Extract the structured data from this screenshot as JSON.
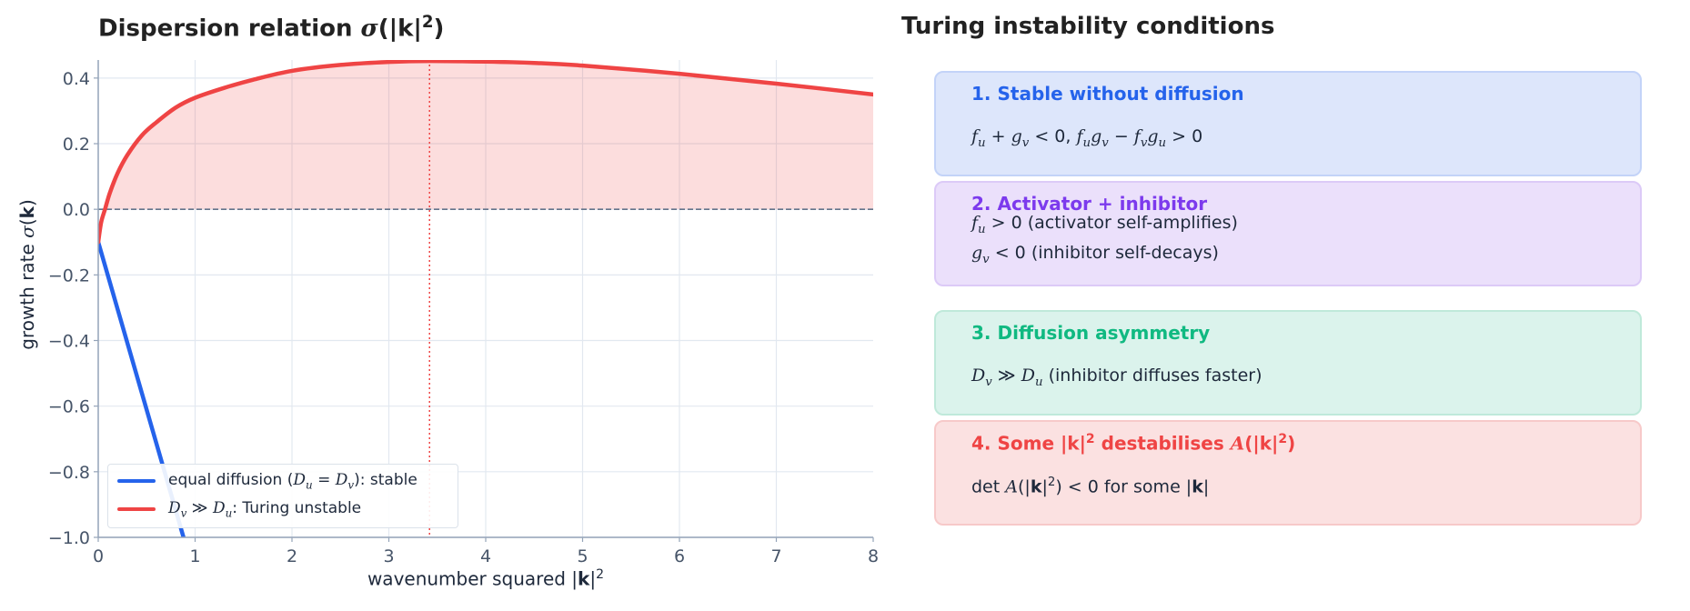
{
  "left_title": [
    {
      "t": "Dispersion relation "
    },
    {
      "t": "σ",
      "s": "m"
    },
    {
      "t": "(|"
    },
    {
      "t": "k",
      "s": "b"
    },
    {
      "t": "|"
    },
    {
      "t": "2",
      "s": "sup"
    },
    {
      "t": ")"
    }
  ],
  "right_title": "Turing instability conditions",
  "colors": {
    "blue": "#2563eb",
    "red": "#ef4444",
    "purple": "#7c3aed",
    "green": "#10b981",
    "grid": "#e2e8f0",
    "axis": "#94a3b8",
    "tick": "#475569"
  },
  "chart_data": {
    "type": "line",
    "xlabel": [
      {
        "t": "wavenumber squared  |"
      },
      {
        "t": "k",
        "s": "b"
      },
      {
        "t": "|"
      },
      {
        "t": "2",
        "s": "sup"
      }
    ],
    "ylabel": [
      {
        "t": "growth rate  "
      },
      {
        "t": "σ",
        "s": "m"
      },
      {
        "t": "("
      },
      {
        "t": "k",
        "s": "b"
      },
      {
        "t": ")"
      }
    ],
    "xlim": [
      0,
      8
    ],
    "ylim": [
      -1.0,
      0.455
    ],
    "xticks": [
      "0",
      "1",
      "2",
      "3",
      "4",
      "5",
      "6",
      "7",
      "8"
    ],
    "yticks": [
      {
        "v": 0.4,
        "l": "0.4"
      },
      {
        "v": 0.2,
        "l": "0.2"
      },
      {
        "v": 0.0,
        "l": "0.0"
      },
      {
        "v": -0.2,
        "l": "−0.2"
      },
      {
        "v": -0.4,
        "l": "−0.4"
      },
      {
        "v": -0.6,
        "l": "−0.6"
      },
      {
        "v": -0.8,
        "l": "−0.8"
      },
      {
        "v": -1.0,
        "l": "−1.0"
      }
    ],
    "grid": true,
    "reference_lines": {
      "horizontal_dashed_y": 0.0,
      "vertical_dotted_x": 3.42
    },
    "legend_placement": "lower-left",
    "series": [
      {
        "name": [
          {
            "t": "equal diffusion ("
          },
          {
            "t": "D",
            "s": "m"
          },
          {
            "t": "u",
            "s": "sub m"
          },
          {
            "t": " = "
          },
          {
            "t": "D",
            "s": "m"
          },
          {
            "t": "v",
            "s": "sub m"
          },
          {
            "t": "): stable"
          }
        ],
        "color": "#2563eb",
        "x": [
          0,
          0.9
        ],
        "y": [
          -0.1,
          -1.02
        ]
      },
      {
        "name": [
          {
            "t": "D",
            "s": "m"
          },
          {
            "t": "v",
            "s": "sub m"
          },
          {
            "t": " ≫ "
          },
          {
            "t": "D",
            "s": "m"
          },
          {
            "t": "u",
            "s": "sub m"
          },
          {
            "t": ": Turing unstable"
          }
        ],
        "color": "#ef4444",
        "fill_positive": true,
        "x": [
          0,
          0.03,
          0.07,
          0.12,
          0.2,
          0.3,
          0.45,
          0.6,
          0.8,
          1.0,
          1.3,
          1.6,
          2.0,
          2.5,
          3.0,
          3.42,
          4.0,
          4.5,
          5.0,
          6.0,
          7.0,
          8.0
        ],
        "y": [
          -0.1,
          -0.04,
          0.0,
          0.05,
          0.11,
          0.165,
          0.225,
          0.265,
          0.31,
          0.34,
          0.37,
          0.395,
          0.422,
          0.44,
          0.449,
          0.452,
          0.45,
          0.446,
          0.438,
          0.413,
          0.383,
          0.35
        ]
      }
    ]
  },
  "conditions": [
    {
      "title": [
        {
          "t": "1. Stable without diffusion"
        }
      ],
      "color": "#2563eb",
      "bg": "#dde6fb",
      "border": "#c3d3f8",
      "lines": [
        [
          {
            "t": "f",
            "s": "m"
          },
          {
            "t": "u",
            "s": "sub m"
          },
          {
            "t": " + "
          },
          {
            "t": "g",
            "s": "m"
          },
          {
            "t": "v",
            "s": "sub m"
          },
          {
            "t": " < 0,   "
          },
          {
            "t": "f",
            "s": "m"
          },
          {
            "t": "u",
            "s": "sub m"
          },
          {
            "t": "g",
            "s": "m"
          },
          {
            "t": "v",
            "s": "sub m"
          },
          {
            "t": " − "
          },
          {
            "t": "f",
            "s": "m"
          },
          {
            "t": "v",
            "s": "sub m"
          },
          {
            "t": "g",
            "s": "m"
          },
          {
            "t": "u",
            "s": "sub m"
          },
          {
            "t": " > 0"
          }
        ]
      ]
    },
    {
      "title": [
        {
          "t": "2. Activator + inhibitor"
        }
      ],
      "color": "#7c3aed",
      "bg": "#ebe0fb",
      "border": "#dccaf7",
      "lines": [
        [
          {
            "t": "f",
            "s": "m"
          },
          {
            "t": "u",
            "s": "sub m"
          },
          {
            "t": " > 0   (activator self-amplifies)"
          }
        ],
        [
          {
            "t": "g",
            "s": "m"
          },
          {
            "t": "v",
            "s": "sub m"
          },
          {
            "t": " < 0   (inhibitor self-decays)"
          }
        ]
      ]
    },
    {
      "title": [
        {
          "t": "3. Diffusion asymmetry"
        }
      ],
      "color": "#10b981",
      "bg": "#dbf3ec",
      "border": "#bfe9da",
      "lines": [
        [
          {
            "t": "D",
            "s": "m"
          },
          {
            "t": "v",
            "s": "sub m"
          },
          {
            "t": "  ≫  "
          },
          {
            "t": "D",
            "s": "m"
          },
          {
            "t": "u",
            "s": "sub m"
          },
          {
            "t": "  (inhibitor diffuses faster)"
          }
        ]
      ]
    },
    {
      "title": [
        {
          "t": "4. Some |"
        },
        {
          "t": "k",
          "s": "b"
        },
        {
          "t": "|"
        },
        {
          "t": "2",
          "s": "sup"
        },
        {
          "t": " destabilises "
        },
        {
          "t": "A",
          "s": "m"
        },
        {
          "t": "(|"
        },
        {
          "t": "k",
          "s": "b"
        },
        {
          "t": "|"
        },
        {
          "t": "2",
          "s": "sup"
        },
        {
          "t": ")"
        }
      ],
      "color": "#ef4444",
      "bg": "#fbe1e1",
      "border": "#f7c9c9",
      "lines": [
        [
          {
            "t": "det "
          },
          {
            "t": "A",
            "s": "m"
          },
          {
            "t": "(|"
          },
          {
            "t": "k",
            "s": "b"
          },
          {
            "t": "|"
          },
          {
            "t": "2",
            "s": "sup"
          },
          {
            "t": ") < 0  for some |"
          },
          {
            "t": "k",
            "s": "b"
          },
          {
            "t": "|"
          }
        ]
      ]
    }
  ]
}
